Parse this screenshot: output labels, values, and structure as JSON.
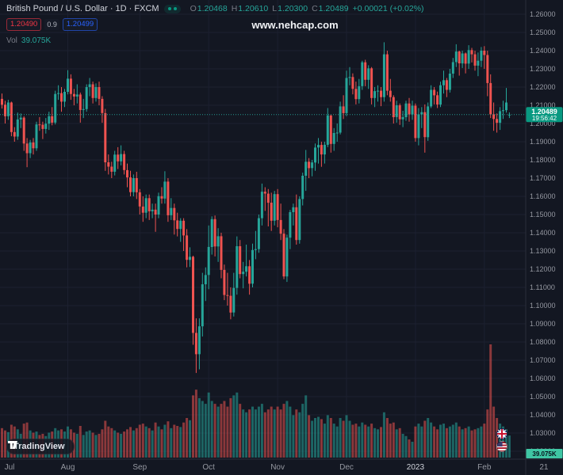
{
  "header": {
    "title": "British Pound / U.S. Dollar · 1D · FXCM",
    "ohlc": [
      {
        "label": "O",
        "value": "1.20468"
      },
      {
        "label": "H",
        "value": "1.20610"
      },
      {
        "label": "L",
        "value": "1.20300"
      },
      {
        "label": "C",
        "value": "1.20489"
      }
    ],
    "change": "+0.00021 (+0.02%)",
    "sell_price": "1.20490",
    "spread": "0.9",
    "buy_price": "1.20499",
    "vol_label": "Vol",
    "vol_value": "39.075K"
  },
  "watermark": "www.nehcap.com",
  "footer": {
    "logo_text": "TradingView"
  },
  "colors": {
    "background": "#131722",
    "up": "#26a69a",
    "down": "#ef5350",
    "badge": "#089981",
    "vol_badge": "#3fc6a4",
    "axis_text": "#9598a1",
    "grid": "#1c2030",
    "separator": "#2a2e39",
    "text": "#d1d4dc",
    "muted": "#787b86",
    "sell": "#f23645",
    "buy": "#2962ff"
  },
  "axis": {
    "price_min": 1.02,
    "price_max": 1.26,
    "price_step": 0.01,
    "last_price_label": "1.20489",
    "countdown": "19:56:42",
    "volume_badge": "39.075K",
    "time_labels": [
      {
        "label": "Jul",
        "index": 0
      },
      {
        "label": "Aug",
        "index": 21
      },
      {
        "label": "Sep",
        "index": 44
      },
      {
        "label": "Oct",
        "index": 66
      },
      {
        "label": "Nov",
        "index": 88
      },
      {
        "label": "Dec",
        "index": 110
      },
      {
        "label": "2023",
        "index": 132,
        "major": true
      },
      {
        "label": "Feb",
        "index": 154
      },
      {
        "label": "21",
        "index": 173
      }
    ]
  },
  "chart_data": {
    "type": "candlestick",
    "title": "British Pound / U.S. Dollar, 1D, FXCM",
    "symbol": "GBP/USD",
    "timeframe": "1D",
    "exchange": "FXCM",
    "ylim": [
      1.02,
      1.26
    ],
    "x_range": "Jul 2022 - Feb 2023",
    "last_close": 1.20489,
    "last_volume_k": 39.075,
    "month_start_indices": {
      "Jul": 0,
      "Aug": 21,
      "Sep": 44,
      "Oct": 66,
      "Nov": 88,
      "Dec": 110,
      "2023": 132,
      "Feb": 154
    },
    "ohlc_format": [
      "open",
      "high",
      "low",
      "close",
      "volume_k"
    ],
    "candles": [
      [
        1.2135,
        1.2165,
        1.2082,
        1.2103,
        52
      ],
      [
        1.2103,
        1.2125,
        1.2,
        1.204,
        48
      ],
      [
        1.204,
        1.213,
        1.202,
        1.2115,
        45
      ],
      [
        1.2115,
        1.212,
        1.193,
        1.1953,
        58
      ],
      [
        1.1953,
        1.198,
        1.19,
        1.1928,
        55
      ],
      [
        1.1928,
        1.206,
        1.191,
        1.2022,
        50
      ],
      [
        1.2022,
        1.2055,
        1.1975,
        1.2032,
        42
      ],
      [
        1.2032,
        1.204,
        1.185,
        1.189,
        60
      ],
      [
        1.189,
        1.192,
        1.176,
        1.1837,
        62
      ],
      [
        1.1837,
        1.191,
        1.181,
        1.1896,
        48
      ],
      [
        1.1896,
        1.192,
        1.183,
        1.1864,
        44
      ],
      [
        1.1864,
        1.201,
        1.185,
        1.1995,
        46
      ],
      [
        1.1995,
        1.2035,
        1.196,
        1.1993,
        40
      ],
      [
        1.1993,
        1.201,
        1.1915,
        1.197,
        42
      ],
      [
        1.197,
        1.203,
        1.1945,
        1.1999,
        38
      ],
      [
        1.1999,
        1.2065,
        1.1965,
        1.204,
        44
      ],
      [
        1.204,
        1.209,
        1.199,
        1.2005,
        46
      ],
      [
        1.2005,
        1.218,
        1.1995,
        1.2162,
        52
      ],
      [
        1.2162,
        1.221,
        1.213,
        1.2167,
        48
      ],
      [
        1.2167,
        1.22,
        1.2065,
        1.212,
        50
      ],
      [
        1.212,
        1.219,
        1.209,
        1.2174,
        46
      ],
      [
        1.2174,
        1.2293,
        1.216,
        1.2246,
        55
      ],
      [
        1.2246,
        1.227,
        1.213,
        1.2162,
        50
      ],
      [
        1.2162,
        1.219,
        1.21,
        1.2148,
        44
      ],
      [
        1.2148,
        1.2215,
        1.211,
        1.2159,
        42
      ],
      [
        1.2159,
        1.217,
        1.2005,
        1.2074,
        56
      ],
      [
        1.2074,
        1.2135,
        1.203,
        1.2079,
        40
      ],
      [
        1.2079,
        1.2215,
        1.2065,
        1.22,
        46
      ],
      [
        1.22,
        1.225,
        1.215,
        1.2215,
        48
      ],
      [
        1.2215,
        1.223,
        1.211,
        1.214,
        44
      ],
      [
        1.214,
        1.222,
        1.212,
        1.22,
        40
      ],
      [
        1.22,
        1.223,
        1.21,
        1.2135,
        42
      ],
      [
        1.2135,
        1.215,
        1.2004,
        1.2057,
        50
      ],
      [
        1.2057,
        1.208,
        1.174,
        1.1787,
        65
      ],
      [
        1.1787,
        1.183,
        1.172,
        1.1763,
        55
      ],
      [
        1.1763,
        1.179,
        1.17,
        1.1735,
        52
      ],
      [
        1.1735,
        1.185,
        1.1715,
        1.1829,
        48
      ],
      [
        1.1829,
        1.187,
        1.175,
        1.1792,
        44
      ],
      [
        1.1792,
        1.188,
        1.177,
        1.1832,
        42
      ],
      [
        1.1832,
        1.185,
        1.172,
        1.1744,
        46
      ],
      [
        1.1744,
        1.178,
        1.165,
        1.1704,
        50
      ],
      [
        1.1704,
        1.174,
        1.16,
        1.1623,
        54
      ],
      [
        1.1623,
        1.172,
        1.16,
        1.17,
        48
      ],
      [
        1.17,
        1.1735,
        1.1585,
        1.1622,
        52
      ],
      [
        1.1622,
        1.164,
        1.15,
        1.1544,
        58
      ],
      [
        1.1544,
        1.16,
        1.146,
        1.151,
        60
      ],
      [
        1.151,
        1.161,
        1.148,
        1.159,
        55
      ],
      [
        1.159,
        1.161,
        1.147,
        1.1518,
        52
      ],
      [
        1.1518,
        1.156,
        1.148,
        1.1527,
        48
      ],
      [
        1.1527,
        1.156,
        1.1405,
        1.15,
        62
      ],
      [
        1.15,
        1.162,
        1.148,
        1.1601,
        55
      ],
      [
        1.1601,
        1.165,
        1.156,
        1.1588,
        50
      ],
      [
        1.1588,
        1.1738,
        1.156,
        1.1681,
        58
      ],
      [
        1.1681,
        1.17,
        1.146,
        1.1496,
        64
      ],
      [
        1.1496,
        1.159,
        1.147,
        1.1536,
        52
      ],
      [
        1.1536,
        1.156,
        1.139,
        1.1468,
        58
      ],
      [
        1.1468,
        1.151,
        1.138,
        1.1421,
        56
      ],
      [
        1.1421,
        1.148,
        1.135,
        1.1466,
        54
      ],
      [
        1.1466,
        1.148,
        1.13,
        1.1385,
        62
      ],
      [
        1.1385,
        1.142,
        1.121,
        1.1251,
        70
      ],
      [
        1.1251,
        1.132,
        1.1212,
        1.1268,
        66
      ],
      [
        1.1268,
        1.1274,
        1.0785,
        1.085,
        110
      ],
      [
        1.085,
        1.093,
        1.063,
        1.0733,
        120
      ],
      [
        1.0733,
        1.093,
        1.065,
        1.0886,
        105
      ],
      [
        1.0886,
        1.118,
        1.083,
        1.1117,
        100
      ],
      [
        1.1117,
        1.121,
        1.1025,
        1.1168,
        95
      ],
      [
        1.1168,
        1.144,
        1.109,
        1.1322,
        115
      ],
      [
        1.1322,
        1.149,
        1.128,
        1.1475,
        100
      ],
      [
        1.1475,
        1.1495,
        1.127,
        1.1325,
        95
      ],
      [
        1.1325,
        1.1425,
        1.124,
        1.1381,
        90
      ],
      [
        1.1381,
        1.14,
        1.115,
        1.1196,
        95
      ],
      [
        1.1196,
        1.1225,
        1.103,
        1.1058,
        100
      ],
      [
        1.1058,
        1.118,
        1.1,
        1.1054,
        90
      ],
      [
        1.1054,
        1.11,
        1.0925,
        1.0962,
        105
      ],
      [
        1.0962,
        1.118,
        1.094,
        1.1097,
        110
      ],
      [
        1.1097,
        1.138,
        1.106,
        1.1326,
        115
      ],
      [
        1.1326,
        1.136,
        1.115,
        1.1173,
        95
      ],
      [
        1.1173,
        1.124,
        1.1095,
        1.1186,
        85
      ],
      [
        1.1186,
        1.1335,
        1.116,
        1.1216,
        80
      ],
      [
        1.1216,
        1.125,
        1.106,
        1.112,
        85
      ],
      [
        1.112,
        1.134,
        1.11,
        1.1305,
        90
      ],
      [
        1.1305,
        1.141,
        1.1255,
        1.131,
        85
      ],
      [
        1.131,
        1.15,
        1.129,
        1.148,
        90
      ],
      [
        1.148,
        1.167,
        1.144,
        1.1625,
        95
      ],
      [
        1.1625,
        1.165,
        1.152,
        1.1615,
        80
      ],
      [
        1.1615,
        1.164,
        1.1435,
        1.1565,
        85
      ],
      [
        1.1565,
        1.162,
        1.141,
        1.1466,
        90
      ],
      [
        1.1466,
        1.163,
        1.144,
        1.1612,
        85
      ],
      [
        1.1612,
        1.164,
        1.143,
        1.147,
        90
      ],
      [
        1.147,
        1.156,
        1.136,
        1.1395,
        85
      ],
      [
        1.1395,
        1.142,
        1.1145,
        1.116,
        95
      ],
      [
        1.116,
        1.139,
        1.113,
        1.1373,
        100
      ],
      [
        1.1373,
        1.1525,
        1.131,
        1.1513,
        90
      ],
      [
        1.1513,
        1.156,
        1.144,
        1.154,
        75
      ],
      [
        1.154,
        1.161,
        1.1335,
        1.136,
        85
      ],
      [
        1.136,
        1.16,
        1.134,
        1.1585,
        80
      ],
      [
        1.1585,
        1.173,
        1.155,
        1.1713,
        95
      ],
      [
        1.1713,
        1.1855,
        1.163,
        1.179,
        110
      ],
      [
        1.179,
        1.181,
        1.17,
        1.1755,
        75
      ],
      [
        1.1755,
        1.18,
        1.171,
        1.1786,
        65
      ],
      [
        1.1786,
        1.189,
        1.174,
        1.1868,
        70
      ],
      [
        1.1868,
        1.192,
        1.178,
        1.1882,
        72
      ],
      [
        1.1882,
        1.19,
        1.1762,
        1.183,
        68
      ],
      [
        1.183,
        1.19,
        1.178,
        1.1883,
        60
      ],
      [
        1.1883,
        1.2085,
        1.187,
        1.2044,
        75
      ],
      [
        1.2044,
        1.205,
        1.184,
        1.1888,
        70
      ],
      [
        1.1888,
        1.1975,
        1.185,
        1.1948,
        60
      ],
      [
        1.1948,
        1.2,
        1.19,
        1.195,
        55
      ],
      [
        1.195,
        1.212,
        1.194,
        1.2094,
        70
      ],
      [
        1.2094,
        1.2155,
        1.2025,
        1.2057,
        65
      ],
      [
        1.2057,
        1.229,
        1.204,
        1.225,
        75
      ],
      [
        1.225,
        1.231,
        1.221,
        1.2255,
        65
      ],
      [
        1.2255,
        1.2275,
        1.216,
        1.219,
        58
      ],
      [
        1.219,
        1.223,
        1.2105,
        1.2134,
        60
      ],
      [
        1.2134,
        1.2245,
        1.211,
        1.2205,
        55
      ],
      [
        1.2205,
        1.2345,
        1.2185,
        1.2336,
        62
      ],
      [
        1.2336,
        1.235,
        1.2205,
        1.224,
        58
      ],
      [
        1.224,
        1.232,
        1.219,
        1.2303,
        55
      ],
      [
        1.2303,
        1.231,
        1.2105,
        1.214,
        60
      ],
      [
        1.214,
        1.22,
        1.209,
        1.2178,
        52
      ],
      [
        1.2178,
        1.221,
        1.212,
        1.218,
        50
      ],
      [
        1.218,
        1.22,
        1.2095,
        1.2145,
        54
      ],
      [
        1.2145,
        1.2446,
        1.212,
        1.238,
        80
      ],
      [
        1.238,
        1.24,
        1.2155,
        1.218,
        70
      ],
      [
        1.218,
        1.2245,
        1.212,
        1.2145,
        60
      ],
      [
        1.2145,
        1.2155,
        1.2,
        1.2035,
        62
      ],
      [
        1.2035,
        1.2125,
        1.2005,
        1.21,
        50
      ],
      [
        1.21,
        1.211,
        1.1992,
        1.2023,
        52
      ],
      [
        1.2023,
        1.207,
        1.198,
        1.2035,
        42
      ],
      [
        1.2035,
        1.2125,
        1.2015,
        1.211,
        38
      ],
      [
        1.211,
        1.214,
        1.201,
        1.205,
        32
      ],
      [
        1.205,
        1.2125,
        1.202,
        1.2098,
        28
      ],
      [
        1.2098,
        1.211,
        1.19,
        1.192,
        55
      ],
      [
        1.192,
        1.2085,
        1.188,
        1.205,
        60
      ],
      [
        1.205,
        1.209,
        1.1975,
        1.2062,
        55
      ],
      [
        1.2062,
        1.2105,
        1.184,
        1.1925,
        65
      ],
      [
        1.1925,
        1.2115,
        1.1905,
        1.2094,
        70
      ],
      [
        1.2094,
        1.221,
        1.2085,
        1.2185,
        62
      ],
      [
        1.2185,
        1.22,
        1.2105,
        1.2155,
        55
      ],
      [
        1.2155,
        1.2175,
        1.2085,
        1.2104,
        50
      ],
      [
        1.2104,
        1.223,
        1.209,
        1.221,
        58
      ],
      [
        1.221,
        1.229,
        1.2165,
        1.2238,
        60
      ],
      [
        1.2238,
        1.225,
        1.2145,
        1.2185,
        52
      ],
      [
        1.2185,
        1.23,
        1.217,
        1.2274,
        55
      ],
      [
        1.2274,
        1.236,
        1.225,
        1.2337,
        58
      ],
      [
        1.2337,
        1.2435,
        1.231,
        1.2395,
        62
      ],
      [
        1.2395,
        1.24,
        1.2263,
        1.233,
        55
      ],
      [
        1.233,
        1.24,
        1.2305,
        1.2385,
        50
      ],
      [
        1.2385,
        1.239,
        1.2275,
        1.2329,
        52
      ],
      [
        1.2329,
        1.243,
        1.23,
        1.2403,
        55
      ],
      [
        1.2403,
        1.2415,
        1.2335,
        1.238,
        48
      ],
      [
        1.238,
        1.24,
        1.229,
        1.2318,
        50
      ],
      [
        1.2318,
        1.239,
        1.226,
        1.2345,
        52
      ],
      [
        1.2345,
        1.242,
        1.231,
        1.24,
        55
      ],
      [
        1.24,
        1.2425,
        1.23,
        1.2376,
        60
      ],
      [
        1.2376,
        1.24,
        1.215,
        1.2222,
        85
      ],
      [
        1.2222,
        1.227,
        1.203,
        1.205,
        200
      ],
      [
        1.205,
        1.2115,
        1.196,
        1.2025,
        90
      ],
      [
        1.2025,
        1.2055,
        1.195,
        1.2004,
        70
      ],
      [
        1.2004,
        1.209,
        1.1965,
        1.2068,
        60
      ],
      [
        1.2068,
        1.2125,
        1.2025,
        1.2073,
        55
      ],
      [
        1.2073,
        1.2195,
        1.206,
        1.2115,
        50
      ],
      [
        1.20468,
        1.2061,
        1.203,
        1.20489,
        39.075
      ]
    ]
  }
}
